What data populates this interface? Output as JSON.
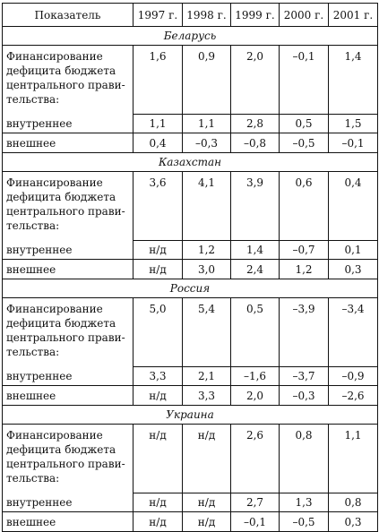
{
  "header": {
    "indicator": "Показатель",
    "years": [
      "1997 г.",
      "1998 г.",
      "1999 г.",
      "2000 г.",
      "2001 г."
    ]
  },
  "countries": [
    {
      "name": "Беларусь",
      "financing_label": "Финансирование дефицита бюджета центрального прави­тельства:",
      "financing": [
        "1,6",
        "0,9",
        "2,0",
        "–0,1",
        "1,4"
      ],
      "domestic_label": "внутреннее",
      "domestic": [
        "1,1",
        "1,1",
        "2,8",
        "0,5",
        "1,5"
      ],
      "external_label": "внешнее",
      "external": [
        "0,4",
        "–0,3",
        "–0,8",
        "–0,5",
        "–0,1"
      ]
    },
    {
      "name": "Казахстан",
      "financing_label": "Финансирование дефицита бюджета центрального прави­тельства:",
      "financing": [
        "3,6",
        "4,1",
        "3,9",
        "0,6",
        "0,4"
      ],
      "domestic_label": "внутреннее",
      "domestic": [
        "н/д",
        "1,2",
        "1,4",
        "–0,7",
        "0,1"
      ],
      "external_label": "внешнее",
      "external": [
        "н/д",
        "3,0",
        "2,4",
        "1,2",
        "0,3"
      ]
    },
    {
      "name": "Россия",
      "financing_label": "Финансирование дефицита бюджета центрального прави­тельства:",
      "financing": [
        "5,0",
        "5,4",
        "0,5",
        "–3,9",
        "–3,4"
      ],
      "domestic_label": "внутреннее",
      "domestic": [
        "3,3",
        "2,1",
        "–1,6",
        "–3,7",
        "–0,9"
      ],
      "external_label": "внешнее",
      "external": [
        "н/д",
        "3,3",
        "2,0",
        "–0,3",
        "–2,6"
      ]
    },
    {
      "name": "Украина",
      "financing_label": "Финансирование дефицита бюджета центрального прави­тельства:",
      "financing": [
        "н/д",
        "н/д",
        "2,6",
        "0,8",
        "1,1"
      ],
      "domestic_label": "внутреннее",
      "domestic": [
        "н/д",
        "н/д",
        "2,7",
        "1,3",
        "0,8"
      ],
      "external_label": "внешнее",
      "external": [
        "н/д",
        "н/д",
        "–0,1",
        "–0,5",
        "0,3"
      ]
    }
  ]
}
